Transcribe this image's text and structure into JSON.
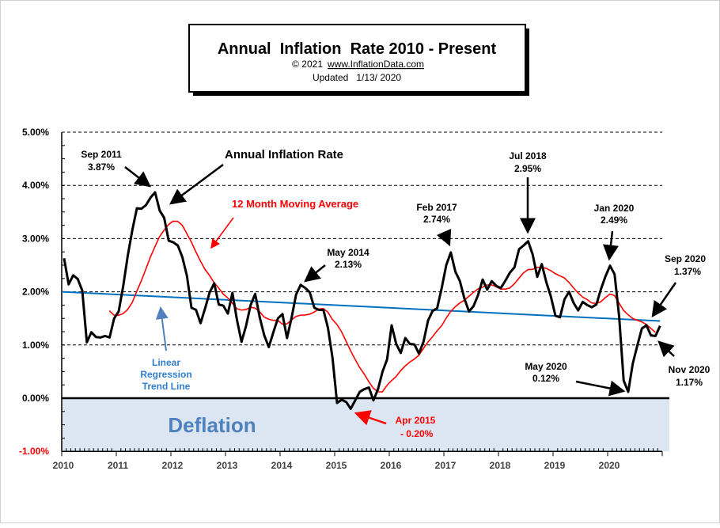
{
  "chart_data": {
    "type": "line",
    "title": "Annual  Inflation  Rate 2010 - Present",
    "subtitle_copyright": "© 2021",
    "subtitle_link": "www.InflationData.com",
    "subtitle_updated": "Updated   1/13/ 2020",
    "xlabel": "",
    "ylabel": "",
    "ylim": [
      -1,
      5
    ],
    "xlim": [
      2010,
      2021
    ],
    "grid": "horizontal dashed",
    "y_ticks": [
      "5.00%",
      "4.00%",
      "3.00%",
      "2.00%",
      "1.00%",
      "0.00%",
      "-1.00%"
    ],
    "x_ticks": [
      "2010",
      "2011",
      "2012",
      "2013",
      "2014",
      "2015",
      "2016",
      "2017",
      "2018",
      "2019",
      "2020"
    ],
    "deflation_label": "Deflation",
    "series": [
      {
        "name": "Annual Inflation Rate",
        "color": "#000000",
        "start": "Jan 2010",
        "frequency": "monthly",
        "values": [
          2.63,
          2.14,
          2.31,
          2.24,
          2.02,
          1.05,
          1.24,
          1.15,
          1.14,
          1.17,
          1.14,
          1.5,
          1.63,
          2.11,
          2.68,
          3.16,
          3.57,
          3.56,
          3.63,
          3.77,
          3.87,
          3.53,
          3.39,
          2.96,
          2.93,
          2.87,
          2.65,
          2.3,
          1.7,
          1.66,
          1.41,
          1.69,
          1.99,
          2.16,
          1.76,
          1.74,
          1.59,
          1.98,
          1.47,
          1.06,
          1.36,
          1.75,
          1.96,
          1.52,
          1.18,
          0.96,
          1.24,
          1.5,
          1.58,
          1.13,
          1.51,
          1.95,
          2.13,
          2.07,
          1.99,
          1.7,
          1.66,
          1.66,
          1.32,
          0.76,
          -0.09,
          -0.03,
          -0.07,
          -0.2,
          -0.04,
          0.12,
          0.17,
          0.2,
          -0.04,
          0.17,
          0.5,
          0.73,
          1.37,
          1.02,
          0.85,
          1.13,
          1.02,
          1.01,
          0.84,
          1.06,
          1.46,
          1.64,
          1.69,
          2.07,
          2.5,
          2.74,
          2.38,
          2.2,
          1.87,
          1.63,
          1.73,
          1.94,
          2.23,
          2.04,
          2.2,
          2.11,
          2.07,
          2.21,
          2.36,
          2.46,
          2.8,
          2.87,
          2.95,
          2.7,
          2.28,
          2.52,
          2.18,
          1.91,
          1.55,
          1.52,
          1.86,
          2.0,
          1.79,
          1.65,
          1.81,
          1.75,
          1.71,
          1.76,
          2.05,
          2.29,
          2.49,
          2.33,
          1.54,
          0.33,
          0.12,
          0.65,
          0.99,
          1.31,
          1.37,
          1.18,
          1.17,
          1.36
        ]
      },
      {
        "name": "12 Month Moving Average",
        "color": "#ff0000",
        "window": 12
      },
      {
        "name": "Linear Regression Trend Line",
        "color": "#0070c0",
        "start_value": 2.0,
        "end_value": 1.45
      }
    ],
    "annotations": {
      "series_label": "Annual Inflation Rate",
      "ma_label": "12 Month Moving Average",
      "trend_label_1": "Linear",
      "trend_label_2": "Regression",
      "trend_label_3": "Trend Line",
      "sep2011_date": "Sep 2011",
      "sep2011_value": "3.87%",
      "may2014_date": "May 2014",
      "may2014_value": "2.13%",
      "apr2015_date": "Apr 2015",
      "apr2015_value": " - 0.20%",
      "feb2017_date": "Feb 2017",
      "feb2017_value": "2.74%",
      "jul2018_date": "Jul 2018",
      "jul2018_value": "2.95%",
      "jan2020_date": "Jan 2020",
      "jan2020_value": "2.49%",
      "sep2020_date": "Sep 2020",
      "sep2020_value": "1.37%",
      "may2020_date": "May 2020",
      "may2020_value": "0.12%",
      "nov2020_date": "Nov 2020",
      "nov2020_value": "1.17%"
    },
    "colors": {
      "deflation_fill": "#dce6f2",
      "deflation_text": "#4f81bd",
      "negative_tick": "#ff0000",
      "trend_label": "#2e7fd0"
    }
  }
}
